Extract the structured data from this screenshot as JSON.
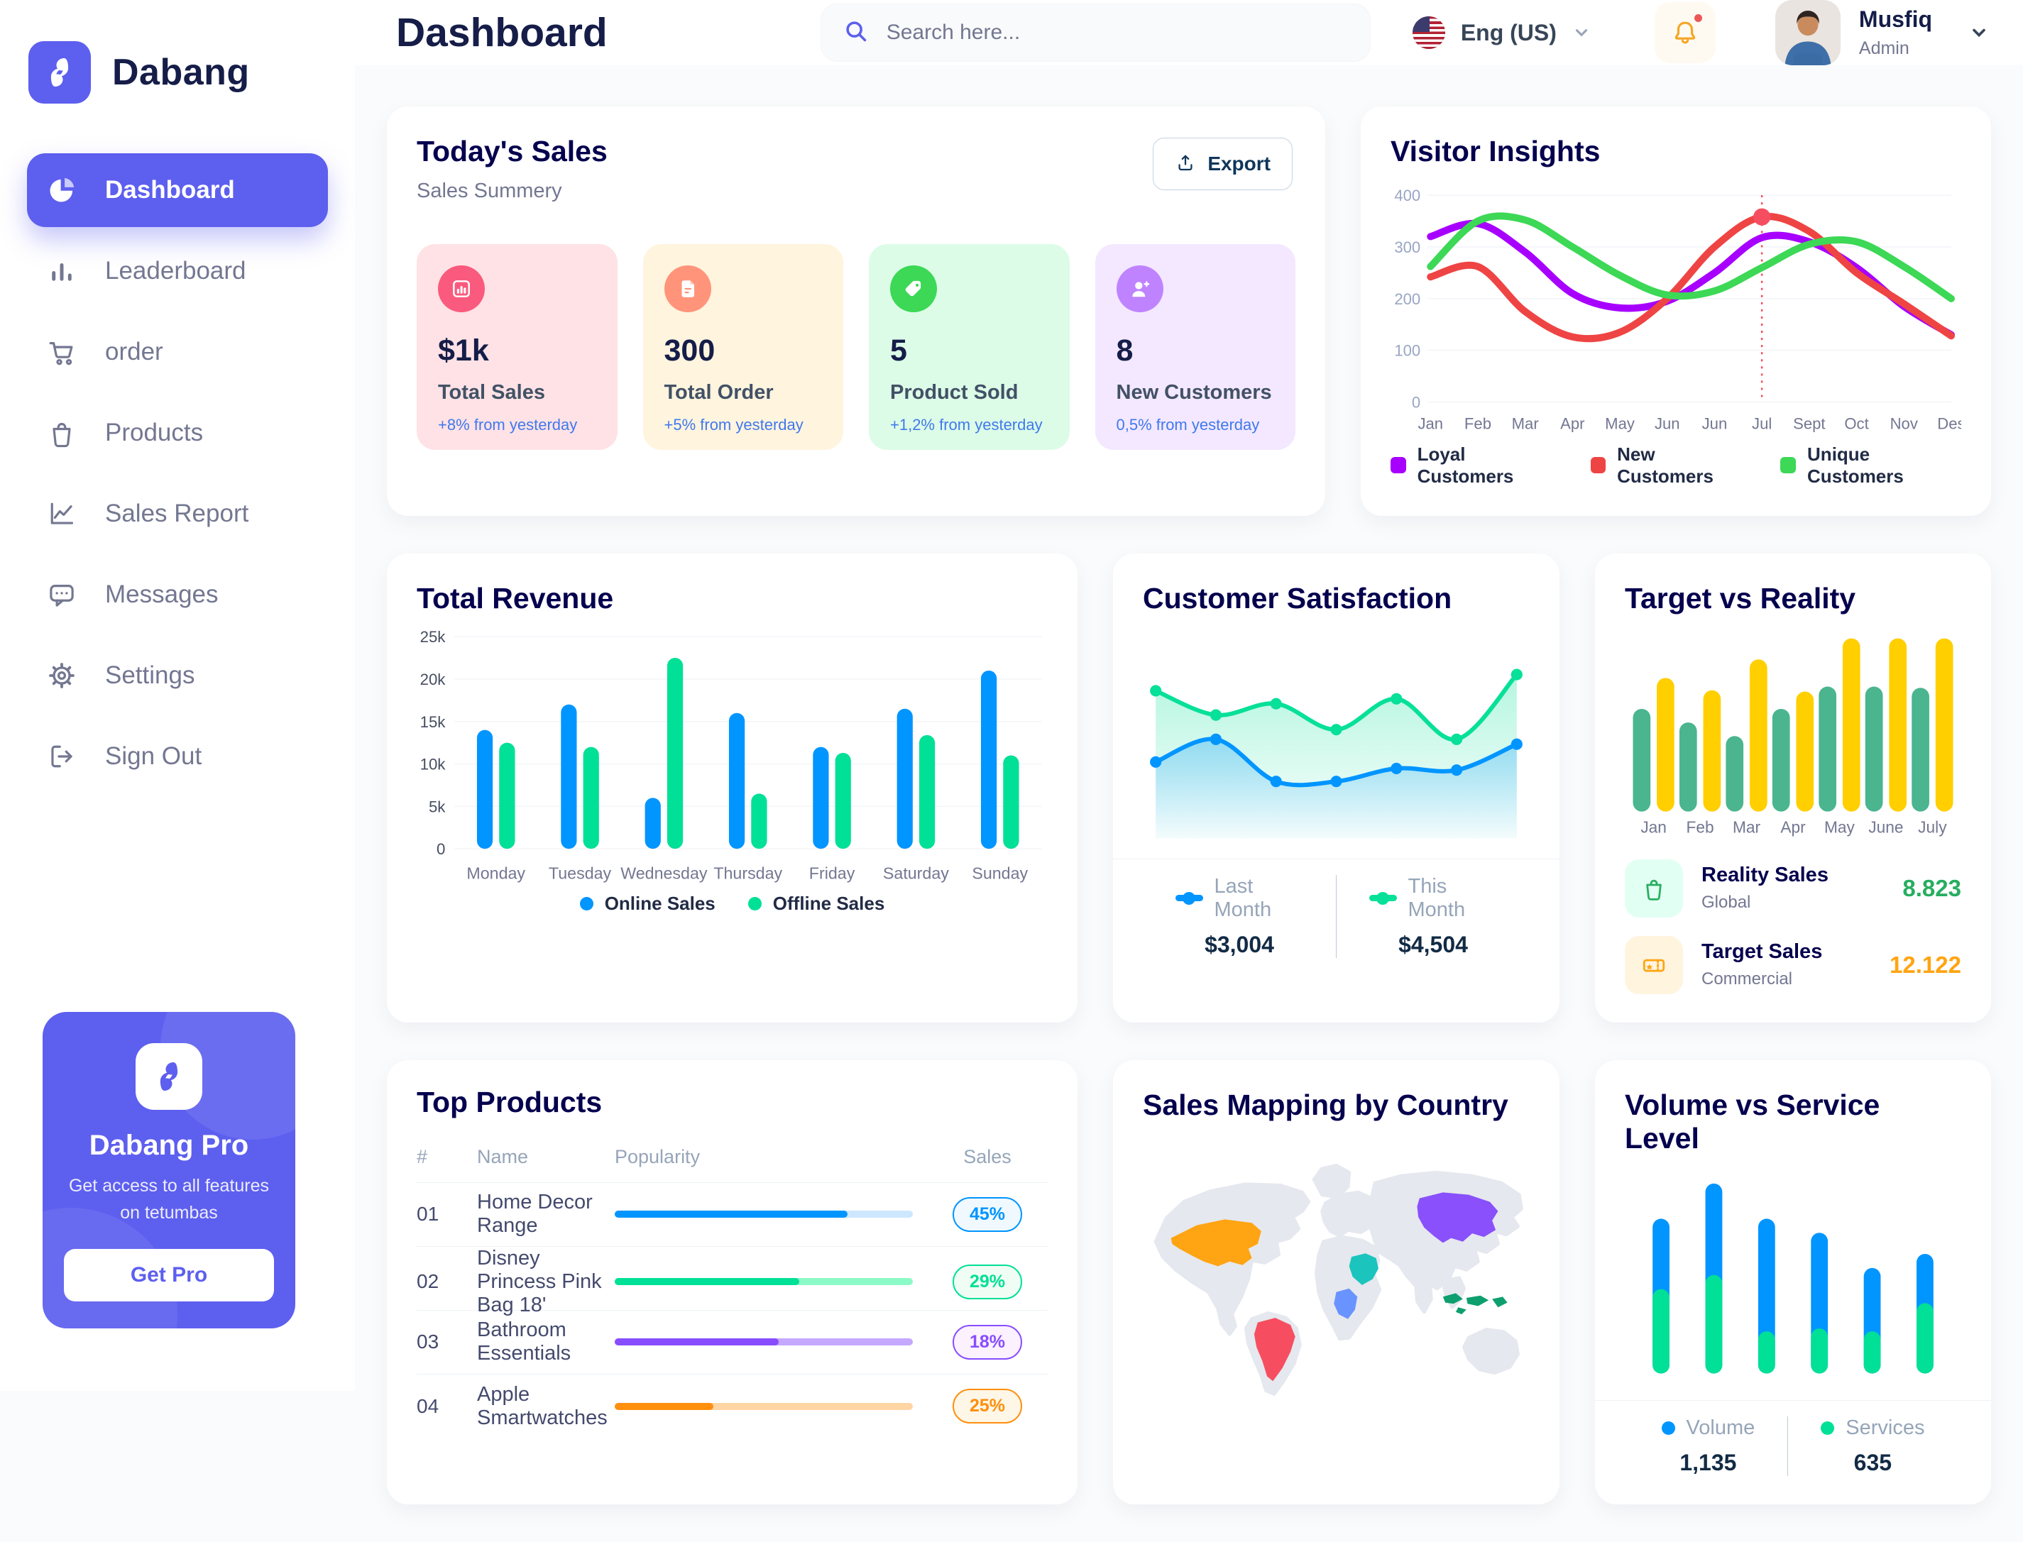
{
  "brand": {
    "name": "Dabang"
  },
  "header": {
    "title": "Dashboard",
    "search_placeholder": "Search here...",
    "language": "Eng (US)",
    "user_name": "Musfiq",
    "user_role": "Admin"
  },
  "sidebar": {
    "items": [
      {
        "label": "Dashboard",
        "active": true
      },
      {
        "label": "Leaderboard"
      },
      {
        "label": "order"
      },
      {
        "label": "Products"
      },
      {
        "label": "Sales Report"
      },
      {
        "label": "Messages"
      },
      {
        "label": "Settings"
      },
      {
        "label": "Sign Out"
      }
    ],
    "pro": {
      "title": "Dabang Pro",
      "description": "Get access to all features on tetumbas",
      "cta": "Get Pro"
    }
  },
  "today_sales": {
    "title": "Today's Sales",
    "subtitle": "Sales Summery",
    "export_label": "Export",
    "stats": [
      {
        "value": "$1k",
        "label": "Total Sales",
        "delta": "+8% from yesterday",
        "bg": "#FFE2E5",
        "icon_bg": "#FA5A7D",
        "delta_color": "#4079ED"
      },
      {
        "value": "300",
        "label": "Total Order",
        "delta": "+5% from yesterday",
        "bg": "#FFF4DE",
        "icon_bg": "#FF947A",
        "delta_color": "#4079ED"
      },
      {
        "value": "5",
        "label": "Product Sold",
        "delta": "+1,2% from yesterday",
        "bg": "#DCFCE7",
        "icon_bg": "#3CD856",
        "delta_color": "#4079ED"
      },
      {
        "value": "8",
        "label": "New Customers",
        "delta": "0,5% from yesterday",
        "bg": "#F3E8FF",
        "icon_bg": "#BF83FF",
        "delta_color": "#4079ED"
      }
    ]
  },
  "customer_satisfaction_legend": [
    {
      "label": "Last Month",
      "value": "$3,004",
      "color": "#0095FF"
    },
    {
      "label": "This Month",
      "value": "$4,504",
      "color": "#07E098"
    }
  ],
  "target_reality_legend": [
    {
      "label": "Reality Sales",
      "sub": "Global",
      "value": "8.823",
      "value_color": "#27AE60",
      "icon_bg": "#E2FFF3"
    },
    {
      "label": "Target Sales",
      "sub": "Commercial",
      "value": "12.122",
      "value_color": "#FFA412",
      "icon_bg": "#FFF4DE"
    }
  ],
  "volume_service_legend": [
    {
      "label": "Volume",
      "value": "1,135",
      "color": "#0095FF"
    },
    {
      "label": "Services",
      "value": "635",
      "color": "#00E096"
    }
  ],
  "top_products": {
    "title": "Top Products",
    "headers": [
      "#",
      "Name",
      "Popularity",
      "Sales"
    ],
    "rows": [
      {
        "num": "01",
        "name": "Home Decor Range",
        "popularity": 78,
        "sales": "45%",
        "color": "#0095FF",
        "track": "#CDE7FF",
        "badge_bg": "#F0F9FF"
      },
      {
        "num": "02",
        "name": "Disney Princess Pink Bag 18'",
        "popularity": 62,
        "sales": "29%",
        "color": "#00E096",
        "track": "#8CFAC7",
        "badge_bg": "#F0FDF4"
      },
      {
        "num": "03",
        "name": "Bathroom Essentials",
        "popularity": 55,
        "sales": "18%",
        "color": "#884DFF",
        "track": "#C5A8FF",
        "badge_bg": "#FBF1FF"
      },
      {
        "num": "04",
        "name": "Apple Smartwatches",
        "popularity": 33,
        "sales": "25%",
        "color": "#FF8F0D",
        "track": "#FFD5A4",
        "badge_bg": "#FEF6E6"
      }
    ]
  },
  "sales_mapping": {
    "title": "Sales Mapping by Country",
    "countries": [
      {
        "name": "United States",
        "color": "#FFA412"
      },
      {
        "name": "Brazil",
        "color": "#F64E60"
      },
      {
        "name": "China",
        "color": "#8950FC"
      },
      {
        "name": "Saudi Arabia",
        "color": "#1BC5BD"
      },
      {
        "name": "DR Congo",
        "color": "#6993FF"
      },
      {
        "name": "Indonesia",
        "color": "#0E9F6E"
      }
    ]
  },
  "chart_data": [
    {
      "id": "visitor_insights",
      "type": "line",
      "title": "Visitor Insights",
      "categories": [
        "Jan",
        "Feb",
        "Mar",
        "Apr",
        "May",
        "Jun",
        "Jun",
        "Jul",
        "Sept",
        "Oct",
        "Nov",
        "Des"
      ],
      "ylim": [
        0,
        400
      ],
      "yticks": [
        0,
        100,
        200,
        300,
        400
      ],
      "grid": true,
      "legend_position": "bottom",
      "series": [
        {
          "name": "Loyal Customers",
          "color": "#A700FF",
          "values": [
            320,
            345,
            290,
            210,
            182,
            195,
            250,
            318,
            310,
            260,
            185,
            130
          ]
        },
        {
          "name": "New Customers",
          "color": "#EF4444",
          "values": [
            242,
            262,
            175,
            126,
            135,
            200,
            300,
            358,
            330,
            250,
            190,
            128
          ]
        },
        {
          "name": "Unique Customers",
          "color": "#3CD856",
          "values": [
            262,
            350,
            352,
            300,
            245,
            207,
            215,
            260,
            305,
            310,
            262,
            200
          ]
        }
      ],
      "marker": {
        "series": 1,
        "index": 7,
        "color": "#F64E60"
      }
    },
    {
      "id": "total_revenue",
      "type": "bar",
      "title": "Total Revenue",
      "categories": [
        "Monday",
        "Tuesday",
        "Wednesday",
        "Thursday",
        "Friday",
        "Saturday",
        "Sunday"
      ],
      "ylim": [
        0,
        25000
      ],
      "yticks": [
        0,
        5000,
        10000,
        15000,
        20000,
        25000
      ],
      "ytick_labels": [
        "0",
        "5k",
        "10k",
        "15k",
        "20k",
        "25k"
      ],
      "grid": true,
      "legend_position": "bottom",
      "series": [
        {
          "name": "Online Sales",
          "color": "#0095FF",
          "values": [
            14000,
            17000,
            6000,
            16000,
            12000,
            16500,
            21000
          ]
        },
        {
          "name": "Offline Sales",
          "color": "#00E096",
          "values": [
            12500,
            12000,
            22500,
            6500,
            11300,
            13400,
            11000
          ]
        }
      ]
    },
    {
      "id": "customer_satisfaction",
      "type": "area",
      "title": "Customer Satisfaction",
      "categories": [
        "1",
        "2",
        "3",
        "4",
        "5",
        "6",
        "7"
      ],
      "x_labels_hidden": true,
      "ylim": [
        0,
        115
      ],
      "grid": false,
      "legend_position": "bottom",
      "series": [
        {
          "name": "Last Month",
          "color": "#0095FF",
          "total": "$3,004",
          "values": [
            42,
            56,
            30,
            30,
            38,
            37,
            53
          ]
        },
        {
          "name": "This Month",
          "color": "#07E098",
          "total": "$4,504",
          "values": [
            86,
            71,
            78,
            62,
            81,
            56,
            96
          ]
        }
      ]
    },
    {
      "id": "target_reality",
      "type": "bar",
      "title": "Target vs Reality",
      "categories": [
        "Jan",
        "Feb",
        "Mar",
        "Apr",
        "May",
        "June",
        "July"
      ],
      "ylim": [
        0,
        14.5
      ],
      "y_hidden": true,
      "grid": false,
      "legend_position": "bottom",
      "series": [
        {
          "name": "Reality Sales",
          "color": "#4AB58E",
          "values": [
            8.3,
            7.2,
            6.1,
            8.3,
            10.1,
            10.1,
            10.0
          ]
        },
        {
          "name": "Target Sales",
          "color": "#FFCF00",
          "values": [
            10.8,
            9.8,
            12.3,
            9.7,
            14.0,
            14.0,
            14.0
          ]
        }
      ]
    },
    {
      "id": "volume_service",
      "type": "stacked-bar",
      "title": "Volume vs Service Level",
      "categories": [
        "1",
        "2",
        "3",
        "4",
        "5",
        "6"
      ],
      "x_labels_hidden": true,
      "ylim": [
        0,
        14
      ],
      "grid": false,
      "legend_position": "bottom",
      "series": [
        {
          "name": "Volume",
          "color": "#0095FF",
          "total": "1,135",
          "values": [
            5.0,
            6.5,
            8.0,
            6.8,
            4.5,
            3.5
          ]
        },
        {
          "name": "Services",
          "color": "#00E096",
          "total": "635",
          "values": [
            6.0,
            7.0,
            3.0,
            3.2,
            3.0,
            5.0
          ]
        }
      ]
    }
  ]
}
